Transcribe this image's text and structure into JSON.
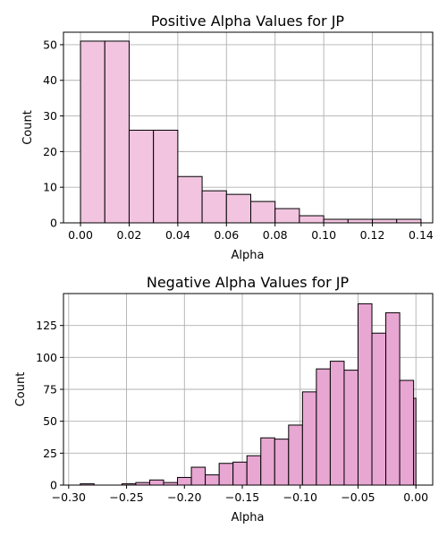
{
  "chart_data": [
    {
      "type": "bar",
      "title": "Positive Alpha Values for JP",
      "xlabel": "Alpha",
      "ylabel": "Count",
      "xlim": [
        -0.007,
        0.1448
      ],
      "ylim": [
        0,
        53.5
      ],
      "grid": true,
      "bar_color": "#f2c4e0",
      "x_ticks": [
        "0.00",
        "0.02",
        "0.04",
        "0.06",
        "0.08",
        "0.10",
        "0.12",
        "0.14"
      ],
      "x_tick_values": [
        0.0,
        0.02,
        0.04,
        0.06,
        0.08,
        0.1,
        0.12,
        0.14
      ],
      "y_ticks": [
        "0",
        "10",
        "20",
        "30",
        "40",
        "50"
      ],
      "y_tick_values": [
        0,
        10,
        20,
        30,
        40,
        50
      ],
      "bins": [
        {
          "x0": 0.0,
          "x1": 0.01,
          "count": 51
        },
        {
          "x0": 0.01,
          "x1": 0.02,
          "count": 51
        },
        {
          "x0": 0.02,
          "x1": 0.03,
          "count": 26
        },
        {
          "x0": 0.03,
          "x1": 0.04,
          "count": 26
        },
        {
          "x0": 0.04,
          "x1": 0.05,
          "count": 13
        },
        {
          "x0": 0.05,
          "x1": 0.06,
          "count": 9
        },
        {
          "x0": 0.06,
          "x1": 0.07,
          "count": 8
        },
        {
          "x0": 0.07,
          "x1": 0.08,
          "count": 6
        },
        {
          "x0": 0.08,
          "x1": 0.09,
          "count": 4
        },
        {
          "x0": 0.09,
          "x1": 0.1,
          "count": 2
        },
        {
          "x0": 0.1,
          "x1": 0.11,
          "count": 1
        },
        {
          "x0": 0.11,
          "x1": 0.12,
          "count": 1
        },
        {
          "x0": 0.12,
          "x1": 0.13,
          "count": 1
        },
        {
          "x0": 0.13,
          "x1": 0.14,
          "count": 1
        }
      ]
    },
    {
      "type": "bar",
      "title": "Negative Alpha Values for JP",
      "xlabel": "Alpha",
      "ylabel": "Count",
      "xlim": [
        -0.3045,
        0.0145
      ],
      "ylim": [
        0,
        150
      ],
      "grid": true,
      "bar_color": "#e8a6d2",
      "x_ticks": [
        "−0.30",
        "−0.25",
        "−0.20",
        "−0.15",
        "−0.10",
        "−0.05",
        "0.00"
      ],
      "x_tick_values": [
        -0.3,
        -0.25,
        -0.2,
        -0.15,
        -0.1,
        -0.05,
        0.0
      ],
      "y_ticks": [
        "0",
        "25",
        "50",
        "75",
        "100",
        "125"
      ],
      "y_tick_values": [
        0,
        25,
        50,
        75,
        100,
        125
      ],
      "bins": [
        {
          "x0": -0.29,
          "x1": -0.278,
          "count": 1
        },
        {
          "x0": -0.278,
          "x1": -0.266,
          "count": 0
        },
        {
          "x0": -0.266,
          "x1": -0.254,
          "count": 0
        },
        {
          "x0": -0.254,
          "x1": -0.242,
          "count": 1
        },
        {
          "x0": -0.242,
          "x1": -0.23,
          "count": 2
        },
        {
          "x0": -0.23,
          "x1": -0.218,
          "count": 4
        },
        {
          "x0": -0.218,
          "x1": -0.206,
          "count": 2
        },
        {
          "x0": -0.206,
          "x1": -0.194,
          "count": 6
        },
        {
          "x0": -0.194,
          "x1": -0.182,
          "count": 14
        },
        {
          "x0": -0.182,
          "x1": -0.17,
          "count": 8
        },
        {
          "x0": -0.17,
          "x1": -0.158,
          "count": 17
        },
        {
          "x0": -0.158,
          "x1": -0.146,
          "count": 18
        },
        {
          "x0": -0.146,
          "x1": -0.134,
          "count": 23
        },
        {
          "x0": -0.134,
          "x1": -0.122,
          "count": 37
        },
        {
          "x0": -0.122,
          "x1": -0.11,
          "count": 36
        },
        {
          "x0": -0.11,
          "x1": -0.098,
          "count": 47
        },
        {
          "x0": -0.098,
          "x1": -0.086,
          "count": 73
        },
        {
          "x0": -0.086,
          "x1": -0.074,
          "count": 91
        },
        {
          "x0": -0.074,
          "x1": -0.062,
          "count": 97
        },
        {
          "x0": -0.062,
          "x1": -0.05,
          "count": 90
        },
        {
          "x0": -0.05,
          "x1": -0.038,
          "count": 142
        },
        {
          "x0": -0.038,
          "x1": -0.026,
          "count": 119
        },
        {
          "x0": -0.026,
          "x1": -0.014,
          "count": 135
        },
        {
          "x0": -0.014,
          "x1": -0.002,
          "count": 82
        },
        {
          "x0": -0.002,
          "x1": 0.0,
          "count": 68
        }
      ]
    }
  ]
}
